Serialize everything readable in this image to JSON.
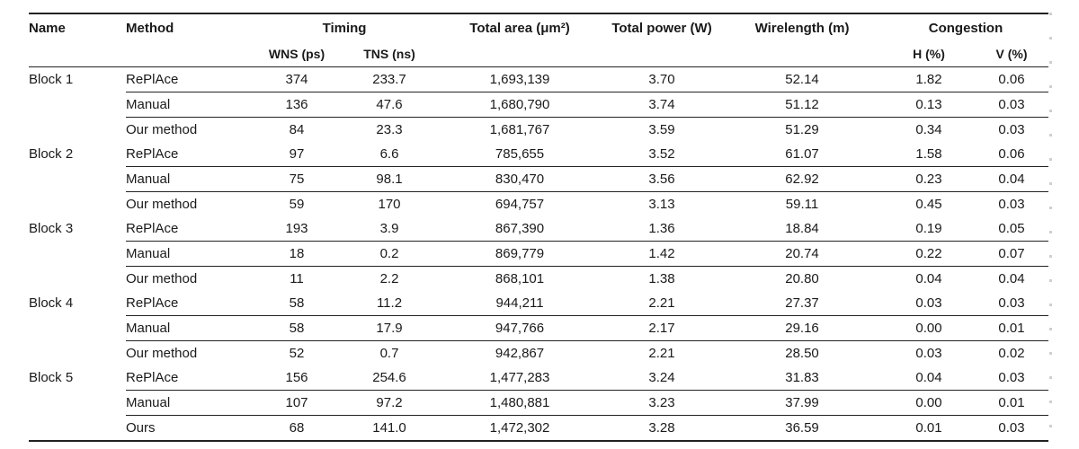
{
  "table": {
    "headers": {
      "name": "Name",
      "method": "Method",
      "timing": "Timing",
      "wns": "WNS (ps)",
      "tns": "TNS (ns)",
      "area": "Total area (μm²)",
      "power": "Total power (W)",
      "wirelength": "Wirelength (m)",
      "congestion": "Congestion",
      "h": "H (%)",
      "v": "V (%)"
    },
    "blocks": [
      {
        "name": "Block 1",
        "rows": [
          {
            "method": "RePlAce",
            "wns": "374",
            "tns": "233.7",
            "area": "1,693,139",
            "power": "3.70",
            "wirelength": "52.14",
            "h": "1.82",
            "v": "0.06"
          },
          {
            "method": "Manual",
            "wns": "136",
            "tns": "47.6",
            "area": "1,680,790",
            "power": "3.74",
            "wirelength": "51.12",
            "h": "0.13",
            "v": "0.03"
          },
          {
            "method": "Our method",
            "wns": "84",
            "tns": "23.3",
            "area": "1,681,767",
            "power": "3.59",
            "wirelength": "51.29",
            "h": "0.34",
            "v": "0.03"
          }
        ]
      },
      {
        "name": "Block 2",
        "rows": [
          {
            "method": "RePlAce",
            "wns": "97",
            "tns": "6.6",
            "area": "785,655",
            "power": "3.52",
            "wirelength": "61.07",
            "h": "1.58",
            "v": "0.06"
          },
          {
            "method": "Manual",
            "wns": "75",
            "tns": "98.1",
            "area": "830,470",
            "power": "3.56",
            "wirelength": "62.92",
            "h": "0.23",
            "v": "0.04"
          },
          {
            "method": "Our method",
            "wns": "59",
            "tns": "170",
            "area": "694,757",
            "power": "3.13",
            "wirelength": "59.11",
            "h": "0.45",
            "v": "0.03"
          }
        ]
      },
      {
        "name": "Block 3",
        "rows": [
          {
            "method": "RePlAce",
            "wns": "193",
            "tns": "3.9",
            "area": "867,390",
            "power": "1.36",
            "wirelength": "18.84",
            "h": "0.19",
            "v": "0.05"
          },
          {
            "method": "Manual",
            "wns": "18",
            "tns": "0.2",
            "area": "869,779",
            "power": "1.42",
            "wirelength": "20.74",
            "h": "0.22",
            "v": "0.07"
          },
          {
            "method": "Our method",
            "wns": "11",
            "tns": "2.2",
            "area": "868,101",
            "power": "1.38",
            "wirelength": "20.80",
            "h": "0.04",
            "v": "0.04"
          }
        ]
      },
      {
        "name": "Block 4",
        "rows": [
          {
            "method": "RePlAce",
            "wns": "58",
            "tns": "11.2",
            "area": "944,211",
            "power": "2.21",
            "wirelength": "27.37",
            "h": "0.03",
            "v": "0.03"
          },
          {
            "method": "Manual",
            "wns": "58",
            "tns": "17.9",
            "area": "947,766",
            "power": "2.17",
            "wirelength": "29.16",
            "h": "0.00",
            "v": "0.01"
          },
          {
            "method": "Our method",
            "wns": "52",
            "tns": "0.7",
            "area": "942,867",
            "power": "2.21",
            "wirelength": "28.50",
            "h": "0.03",
            "v": "0.02"
          }
        ]
      },
      {
        "name": "Block 5",
        "rows": [
          {
            "method": "RePlAce",
            "wns": "156",
            "tns": "254.6",
            "area": "1,477,283",
            "power": "3.24",
            "wirelength": "31.83",
            "h": "0.04",
            "v": "0.03"
          },
          {
            "method": "Manual",
            "wns": "107",
            "tns": "97.2",
            "area": "1,480,881",
            "power": "3.23",
            "wirelength": "37.99",
            "h": "0.00",
            "v": "0.01"
          },
          {
            "method": "Ours",
            "wns": "68",
            "tns": "141.0",
            "area": "1,472,302",
            "power": "3.28",
            "wirelength": "36.59",
            "h": "0.01",
            "v": "0.03"
          }
        ]
      }
    ]
  }
}
